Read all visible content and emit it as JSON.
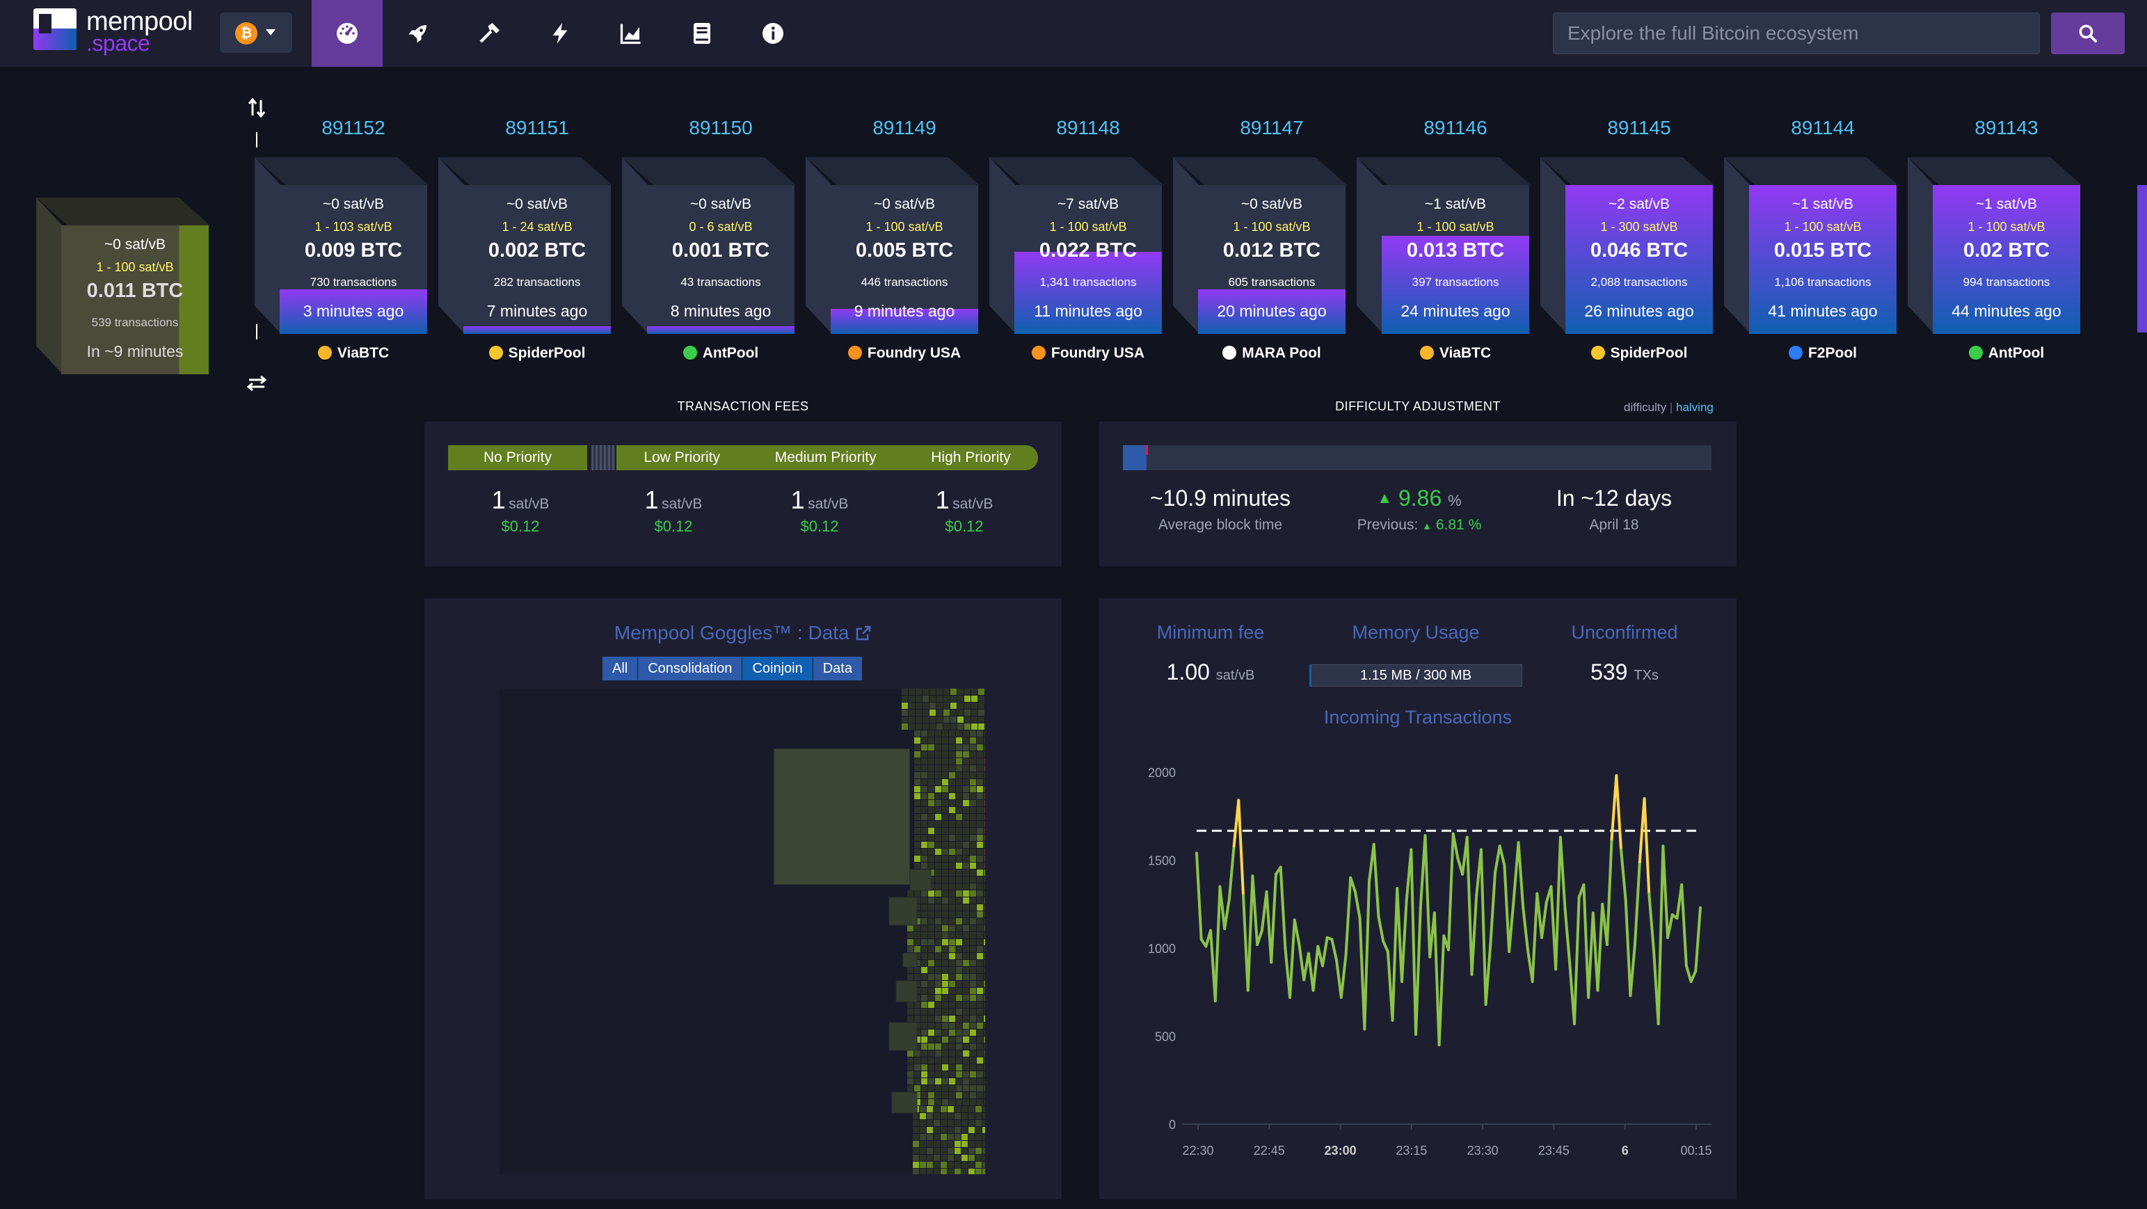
{
  "header": {
    "logo_line1": "mempool",
    "logo_line2": ".space",
    "network_symbol": "₿",
    "nav_icons": [
      "dashboard-icon",
      "rocket-icon",
      "hammer-icon",
      "lightning-icon",
      "chart-icon",
      "docs-icon",
      "info-icon"
    ],
    "search_placeholder": "Explore the full Bitcoin ecosystem"
  },
  "projected_block": {
    "fee_median": "~0 sat/vB",
    "fee_range": "1 - 100 sat/vB",
    "size": "0.011 BTC",
    "tx_count": "539 transactions",
    "eta": "In ~9 minutes"
  },
  "blocks": [
    {
      "height": "891152",
      "fee_median": "~0 sat/vB",
      "fee_range": "1 - 103 sat/vB",
      "size": "0.009 BTC",
      "tx_count": "730 transactions",
      "time_ago": "3 minutes ago",
      "pool": "ViaBTC",
      "fill": 0.3
    },
    {
      "height": "891151",
      "fee_median": "~0 sat/vB",
      "fee_range": "1 - 24 sat/vB",
      "size": "0.002 BTC",
      "tx_count": "282 transactions",
      "time_ago": "7 minutes ago",
      "pool": "SpiderPool",
      "fill": 0.05
    },
    {
      "height": "891150",
      "fee_median": "~0 sat/vB",
      "fee_range": "0 - 6 sat/vB",
      "size": "0.001 BTC",
      "tx_count": "43 transactions",
      "time_ago": "8 minutes ago",
      "pool": "AntPool",
      "fill": 0.05
    },
    {
      "height": "891149",
      "fee_median": "~0 sat/vB",
      "fee_range": "1 - 100 sat/vB",
      "size": "0.005 BTC",
      "tx_count": "446 transactions",
      "time_ago": "9 minutes ago",
      "pool": "Foundry USA",
      "fill": 0.17
    },
    {
      "height": "891148",
      "fee_median": "~7 sat/vB",
      "fee_range": "1 - 100 sat/vB",
      "size": "0.022 BTC",
      "tx_count": "1,341 transactions",
      "time_ago": "11 minutes ago",
      "pool": "Foundry USA",
      "fill": 0.55
    },
    {
      "height": "891147",
      "fee_median": "~0 sat/vB",
      "fee_range": "1 - 100 sat/vB",
      "size": "0.012 BTC",
      "tx_count": "605 transactions",
      "time_ago": "20 minutes ago",
      "pool": "MARA Pool",
      "fill": 0.3
    },
    {
      "height": "891146",
      "fee_median": "~1 sat/vB",
      "fee_range": "1 - 100 sat/vB",
      "size": "0.013 BTC",
      "tx_count": "397 transactions",
      "time_ago": "24 minutes ago",
      "pool": "ViaBTC",
      "fill": 0.66
    },
    {
      "height": "891145",
      "fee_median": "~2 sat/vB",
      "fee_range": "1 - 300 sat/vB",
      "size": "0.046 BTC",
      "tx_count": "2,088 transactions",
      "time_ago": "26 minutes ago",
      "pool": "SpiderPool",
      "fill": 1.0
    },
    {
      "height": "891144",
      "fee_median": "~1 sat/vB",
      "fee_range": "1 - 100 sat/vB",
      "size": "0.015 BTC",
      "tx_count": "1,106 transactions",
      "time_ago": "41 minutes ago",
      "pool": "F2Pool",
      "fill": 1.0
    },
    {
      "height": "891143",
      "fee_median": "~1 sat/vB",
      "fee_range": "1 - 100 sat/vB",
      "size": "0.02 BTC",
      "tx_count": "994 transactions",
      "time_ago": "44 minutes ago",
      "pool": "AntPool",
      "fill": 1.0
    }
  ],
  "fees": {
    "title": "TRANSACTION FEES",
    "no_priority": "No Priority",
    "low": "Low Priority",
    "medium": "Medium Priority",
    "high": "High Priority",
    "values": [
      {
        "fee": "1",
        "unit": "sat/vB",
        "usd": "$0.12"
      },
      {
        "fee": "1",
        "unit": "sat/vB",
        "usd": "$0.12"
      },
      {
        "fee": "1",
        "unit": "sat/vB",
        "usd": "$0.12"
      },
      {
        "fee": "1",
        "unit": "sat/vB",
        "usd": "$0.12"
      }
    ]
  },
  "difficulty": {
    "title": "DIFFICULTY ADJUSTMENT",
    "toggle_difficulty": "difficulty",
    "toggle_sep": "|",
    "toggle_halving": "halving",
    "progress": 0.04,
    "avg_block_time": "~10.9 minutes",
    "avg_block_time_label": "Average block time",
    "change": "9.86",
    "change_unit": "%",
    "previous_label": "Previous:",
    "previous_value": "6.81",
    "previous_unit": "%",
    "eta": "In ~12 days",
    "eta_date": "April 18"
  },
  "goggles": {
    "title": "Mempool Goggles™ : Data",
    "filters": [
      "All",
      "Consolidation",
      "Coinjoin",
      "Data"
    ]
  },
  "stats": {
    "min_fee_label": "Minimum fee",
    "min_fee_value": "1.00",
    "min_fee_unit": "sat/vB",
    "memory_label": "Memory Usage",
    "memory_value": "1.15 MB / 300 MB",
    "unconfirmed_label": "Unconfirmed",
    "unconfirmed_value": "539",
    "unconfirmed_unit": "TXs",
    "incoming_title": "Incoming Transactions"
  },
  "chart_data": {
    "type": "line",
    "title": "Incoming Transactions",
    "x_ticks": [
      "22:30",
      "22:45",
      "23:00",
      "23:15",
      "23:30",
      "23:45",
      "6",
      "00:15"
    ],
    "y_ticks": [
      "0",
      "500",
      "1000",
      "1500",
      "2000"
    ],
    "ylim": [
      0,
      2000
    ],
    "threshold": 1667,
    "values": [
      1540,
      1050,
      1010,
      1100,
      700,
      1350,
      1110,
      1280,
      1580,
      1840,
      1300,
      760,
      1410,
      1020,
      1100,
      1320,
      920,
      1420,
      1460,
      1000,
      720,
      1160,
      1020,
      820,
      970,
      760,
      1010,
      900,
      1060,
      1050,
      930,
      720,
      960,
      1400,
      1320,
      1170,
      540,
      1380,
      1590,
      1180,
      1040,
      980,
      590,
      1340,
      810,
      1270,
      1560,
      510,
      1230,
      1640,
      950,
      1200,
      450,
      1070,
      990,
      1650,
      1510,
      1420,
      1630,
      850,
      1300,
      1560,
      680,
      1020,
      1430,
      1580,
      1470,
      980,
      1280,
      1600,
      1230,
      990,
      810,
      1310,
      1060,
      1260,
      1350,
      880,
      1630,
      1220,
      910,
      570,
      1290,
      1360,
      720,
      1200,
      760,
      1250,
      1020,
      1620,
      1980,
      1560,
      1270,
      730,
      1030,
      1490,
      1850,
      1310,
      990,
      570,
      1580,
      1060,
      1190,
      1170,
      1360,
      900,
      810,
      870,
      1230
    ]
  }
}
